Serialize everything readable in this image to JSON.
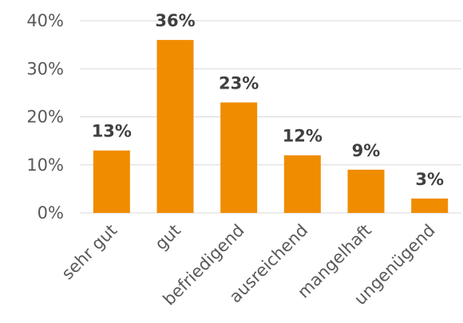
{
  "chart_data": {
    "type": "bar",
    "categories": [
      "sehr gut",
      "gut",
      "befriedigend",
      "ausreichend",
      "mangelhaft",
      "ungenügend"
    ],
    "values": [
      13,
      36,
      23,
      12,
      9,
      3
    ],
    "data_labels": [
      "13%",
      "36%",
      "23%",
      "12%",
      "9%",
      "3%"
    ],
    "y_ticks": [
      {
        "value": 0,
        "label": "0%"
      },
      {
        "value": 10,
        "label": "10%"
      },
      {
        "value": 20,
        "label": "20%"
      },
      {
        "value": 30,
        "label": "30%"
      },
      {
        "value": 40,
        "label": "40%"
      }
    ],
    "ylim": [
      0,
      40
    ],
    "grid": true,
    "legend": "none",
    "bar_color": "#f08c00",
    "title": "",
    "xlabel": "",
    "ylabel": ""
  }
}
